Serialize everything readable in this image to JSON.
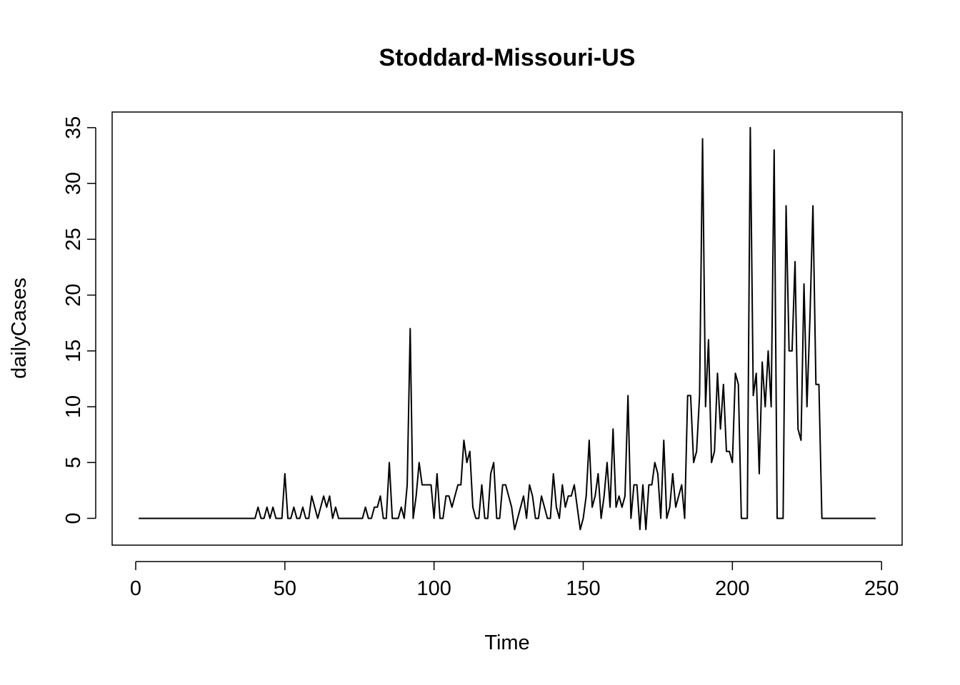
{
  "chart_data": {
    "type": "line",
    "title": "Stoddard-Missouri-US",
    "xlabel": "Time",
    "ylabel": "dailyCases",
    "xlim": [
      -7.9,
      256.9
    ],
    "ylim": [
      -2.4,
      36.4
    ],
    "xticks": [
      0,
      50,
      100,
      150,
      200,
      250
    ],
    "yticks": [
      0,
      5,
      10,
      15,
      20,
      25,
      30,
      35
    ],
    "grid": false,
    "legend": "none",
    "x_start": 1,
    "values": [
      0,
      0,
      0,
      0,
      0,
      0,
      0,
      0,
      0,
      0,
      0,
      0,
      0,
      0,
      0,
      0,
      0,
      0,
      0,
      0,
      0,
      0,
      0,
      0,
      0,
      0,
      0,
      0,
      0,
      0,
      0,
      0,
      0,
      0,
      0,
      0,
      0,
      0,
      0,
      0,
      1,
      0,
      0,
      1,
      0,
      1,
      0,
      0,
      0,
      4,
      0,
      0,
      1,
      0,
      0,
      1,
      0,
      0,
      2,
      1,
      0,
      1,
      2,
      1,
      2,
      0,
      1,
      0,
      0,
      0,
      0,
      0,
      0,
      0,
      0,
      0,
      1,
      0,
      0,
      1,
      1,
      2,
      0,
      0,
      5,
      0,
      0,
      0,
      1,
      0,
      3,
      17,
      0,
      2,
      5,
      3,
      3,
      3,
      3,
      0,
      4,
      0,
      0,
      2,
      2,
      1,
      2,
      3,
      3,
      7,
      5,
      6,
      1,
      0,
      0,
      3,
      0,
      0,
      4,
      5,
      0,
      0,
      3,
      3,
      2,
      1,
      -1,
      0,
      1,
      2,
      0,
      3,
      2,
      0,
      0,
      2,
      1,
      0,
      0,
      4,
      1,
      0,
      3,
      1,
      2,
      2,
      3,
      1,
      -1,
      0,
      2,
      7,
      1,
      2,
      4,
      0,
      2,
      5,
      1,
      8,
      1,
      2,
      1,
      2,
      11,
      0,
      3,
      3,
      -1,
      3,
      -1,
      3,
      3,
      5,
      4,
      0,
      7,
      0,
      1,
      4,
      1,
      2,
      3,
      0,
      11,
      11,
      5,
      6,
      11,
      34,
      10,
      16,
      5,
      6,
      13,
      8,
      12,
      6,
      6,
      5,
      13,
      12,
      0,
      0,
      0,
      35,
      11,
      13,
      4,
      14,
      10,
      15,
      10,
      33,
      0,
      0,
      0,
      28,
      15,
      15,
      23,
      8,
      7,
      21,
      10,
      18,
      28,
      12,
      12,
      0,
      0,
      0,
      0,
      0,
      0,
      0,
      0,
      0,
      0,
      0,
      0,
      0,
      0,
      0,
      0,
      0,
      0,
      0
    ]
  }
}
